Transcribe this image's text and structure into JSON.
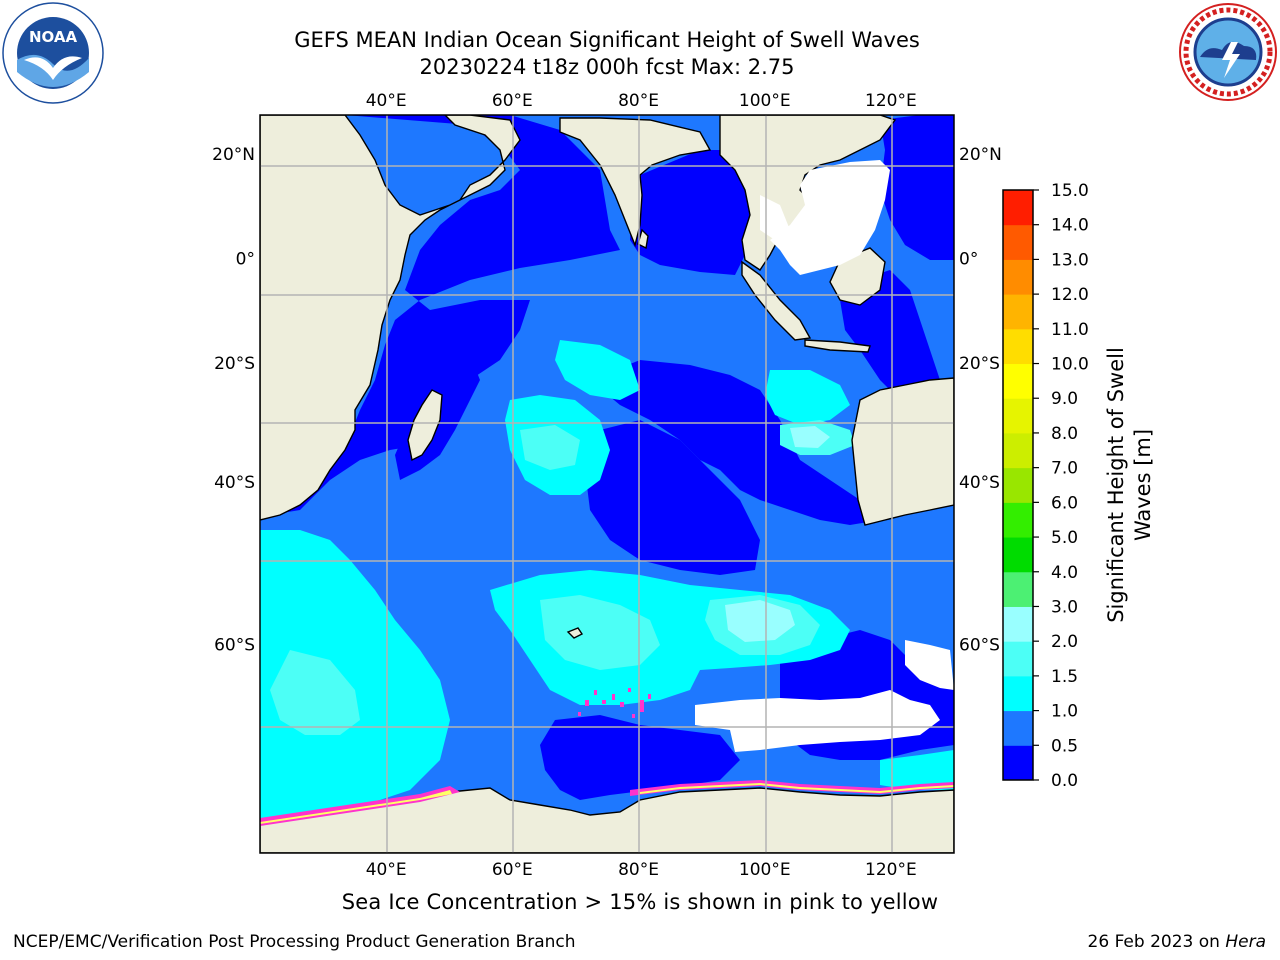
{
  "title": {
    "line1": "GEFS MEAN Indian Ocean Significant Height of Swell Waves",
    "line2": "20230224 t18z 000h fcst   Max: 2.75"
  },
  "logos": {
    "left": {
      "name": "noaa-logo",
      "text": "NOAA",
      "ring_text": "NATIONAL OCEANIC AND ATMOSPHERIC ADMINISTRATION · U.S. DEPARTMENT OF COMMERCE"
    },
    "right": {
      "name": "nws-logo",
      "ring_text": "NATIONAL WEATHER SERVICE"
    }
  },
  "map": {
    "lon_range": [
      20,
      130
    ],
    "lat_range": [
      -75,
      27
    ],
    "lon_ticks": [
      {
        "value": 40,
        "label": "40°E"
      },
      {
        "value": 60,
        "label": "60°E"
      },
      {
        "value": 80,
        "label": "80°E"
      },
      {
        "value": 100,
        "label": "100°E"
      },
      {
        "value": 120,
        "label": "120°E"
      }
    ],
    "lat_ticks": [
      {
        "value": 20,
        "label": "20°N"
      },
      {
        "value": 0,
        "label": "0°"
      },
      {
        "value": -20,
        "label": "20°S"
      },
      {
        "value": -40,
        "label": "40°S"
      },
      {
        "value": -60,
        "label": "60°S"
      }
    ],
    "grid": true,
    "colors": {
      "land": "#eeeedc",
      "ocean_0_05": "#0000ff",
      "ocean_05_1": "#1e78ff",
      "ocean_1_15": "#00ffff",
      "ocean_15_2": "#4cfff6",
      "ocean_2_3": "#99ffff",
      "ice_pink": "#ff33cc",
      "ice_yellow": "#ffff66",
      "grid": "#b4b4b4"
    }
  },
  "colorbar": {
    "title_line1": "Significant Height of Swell",
    "title_line2": "Waves [m]",
    "levels": [
      "0.0",
      "0.5",
      "1.0",
      "1.5",
      "2.0",
      "3.0",
      "4.0",
      "5.0",
      "6.0",
      "7.0",
      "8.0",
      "9.0",
      "10.0",
      "11.0",
      "12.0",
      "13.0",
      "14.0",
      "15.0"
    ],
    "colors": [
      "#0000ff",
      "#1e78ff",
      "#00ffff",
      "#4cfff6",
      "#99ffff",
      "#4cf073",
      "#00dc00",
      "#33ee00",
      "#99e600",
      "#ccee00",
      "#e6f400",
      "#ffff00",
      "#ffdd00",
      "#ffb400",
      "#ff8c00",
      "#ff5a00",
      "#ff1e00"
    ]
  },
  "note": "Sea Ice Concentration > 15% is shown in pink to yellow",
  "footer": {
    "left": "NCEP/EMC/Verification Post Processing Product Generation Branch",
    "right_prefix": "26 Feb 2023 on ",
    "right_host": "Hera"
  }
}
